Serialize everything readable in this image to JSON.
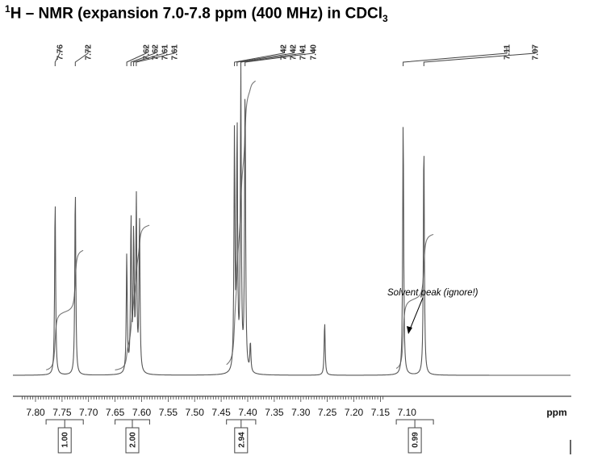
{
  "title": {
    "superscript": "1",
    "main": "H – NMR (expansion 7.0-7.8 ppm (400 MHz) in CDCl",
    "subscript": "3"
  },
  "chart_data": {
    "type": "line",
    "title": "1H – NMR (expansion 7.0-7.8 ppm (400 MHz) in CDCl3",
    "xlabel": "ppm",
    "ylabel": "",
    "xlim": [
      7.8,
      7.0
    ],
    "x_reversed": true,
    "grid": false,
    "x_ticks": [
      "7.80",
      "7.75",
      "7.70",
      "7.65",
      "7.60",
      "7.55",
      "7.50",
      "7.45",
      "7.40",
      "7.35",
      "7.30",
      "7.25",
      "7.20",
      "7.15",
      "7.10",
      "ppm"
    ],
    "peak_labels": [
      "7.76",
      "7.72",
      "7.62",
      "7.62",
      "7.61",
      "7.61",
      "7.42",
      "7.42",
      "7.41",
      "7.40",
      "7.11",
      "7.07"
    ],
    "peaks": [
      {
        "ppm": 7.763,
        "height": 0.6
      },
      {
        "ppm": 7.725,
        "height": 0.64
      },
      {
        "ppm": 7.628,
        "height": 0.4
      },
      {
        "ppm": 7.62,
        "height": 0.52
      },
      {
        "ppm": 7.615,
        "height": 0.46
      },
      {
        "ppm": 7.61,
        "height": 0.58
      },
      {
        "ppm": 7.604,
        "height": 0.52
      },
      {
        "ppm": 7.425,
        "height": 0.8
      },
      {
        "ppm": 7.42,
        "height": 0.82
      },
      {
        "ppm": 7.413,
        "height": 1.0
      },
      {
        "ppm": 7.405,
        "height": 0.98
      },
      {
        "ppm": 7.395,
        "height": 0.1
      },
      {
        "ppm": 7.255,
        "height": 0.18
      },
      {
        "ppm": 7.107,
        "height": 0.87
      },
      {
        "ppm": 7.068,
        "height": 0.8
      }
    ],
    "integrals": [
      {
        "from": 7.78,
        "to": 7.71,
        "value": "1.00"
      },
      {
        "from": 7.65,
        "to": 7.585,
        "value": "2.00"
      },
      {
        "from": 7.44,
        "to": 7.385,
        "value": "2.94"
      },
      {
        "from": 7.12,
        "to": 7.05,
        "value": "0.99"
      }
    ],
    "annotation": {
      "text": "Solvent peak (ignore!)",
      "ppm": 7.255
    }
  }
}
